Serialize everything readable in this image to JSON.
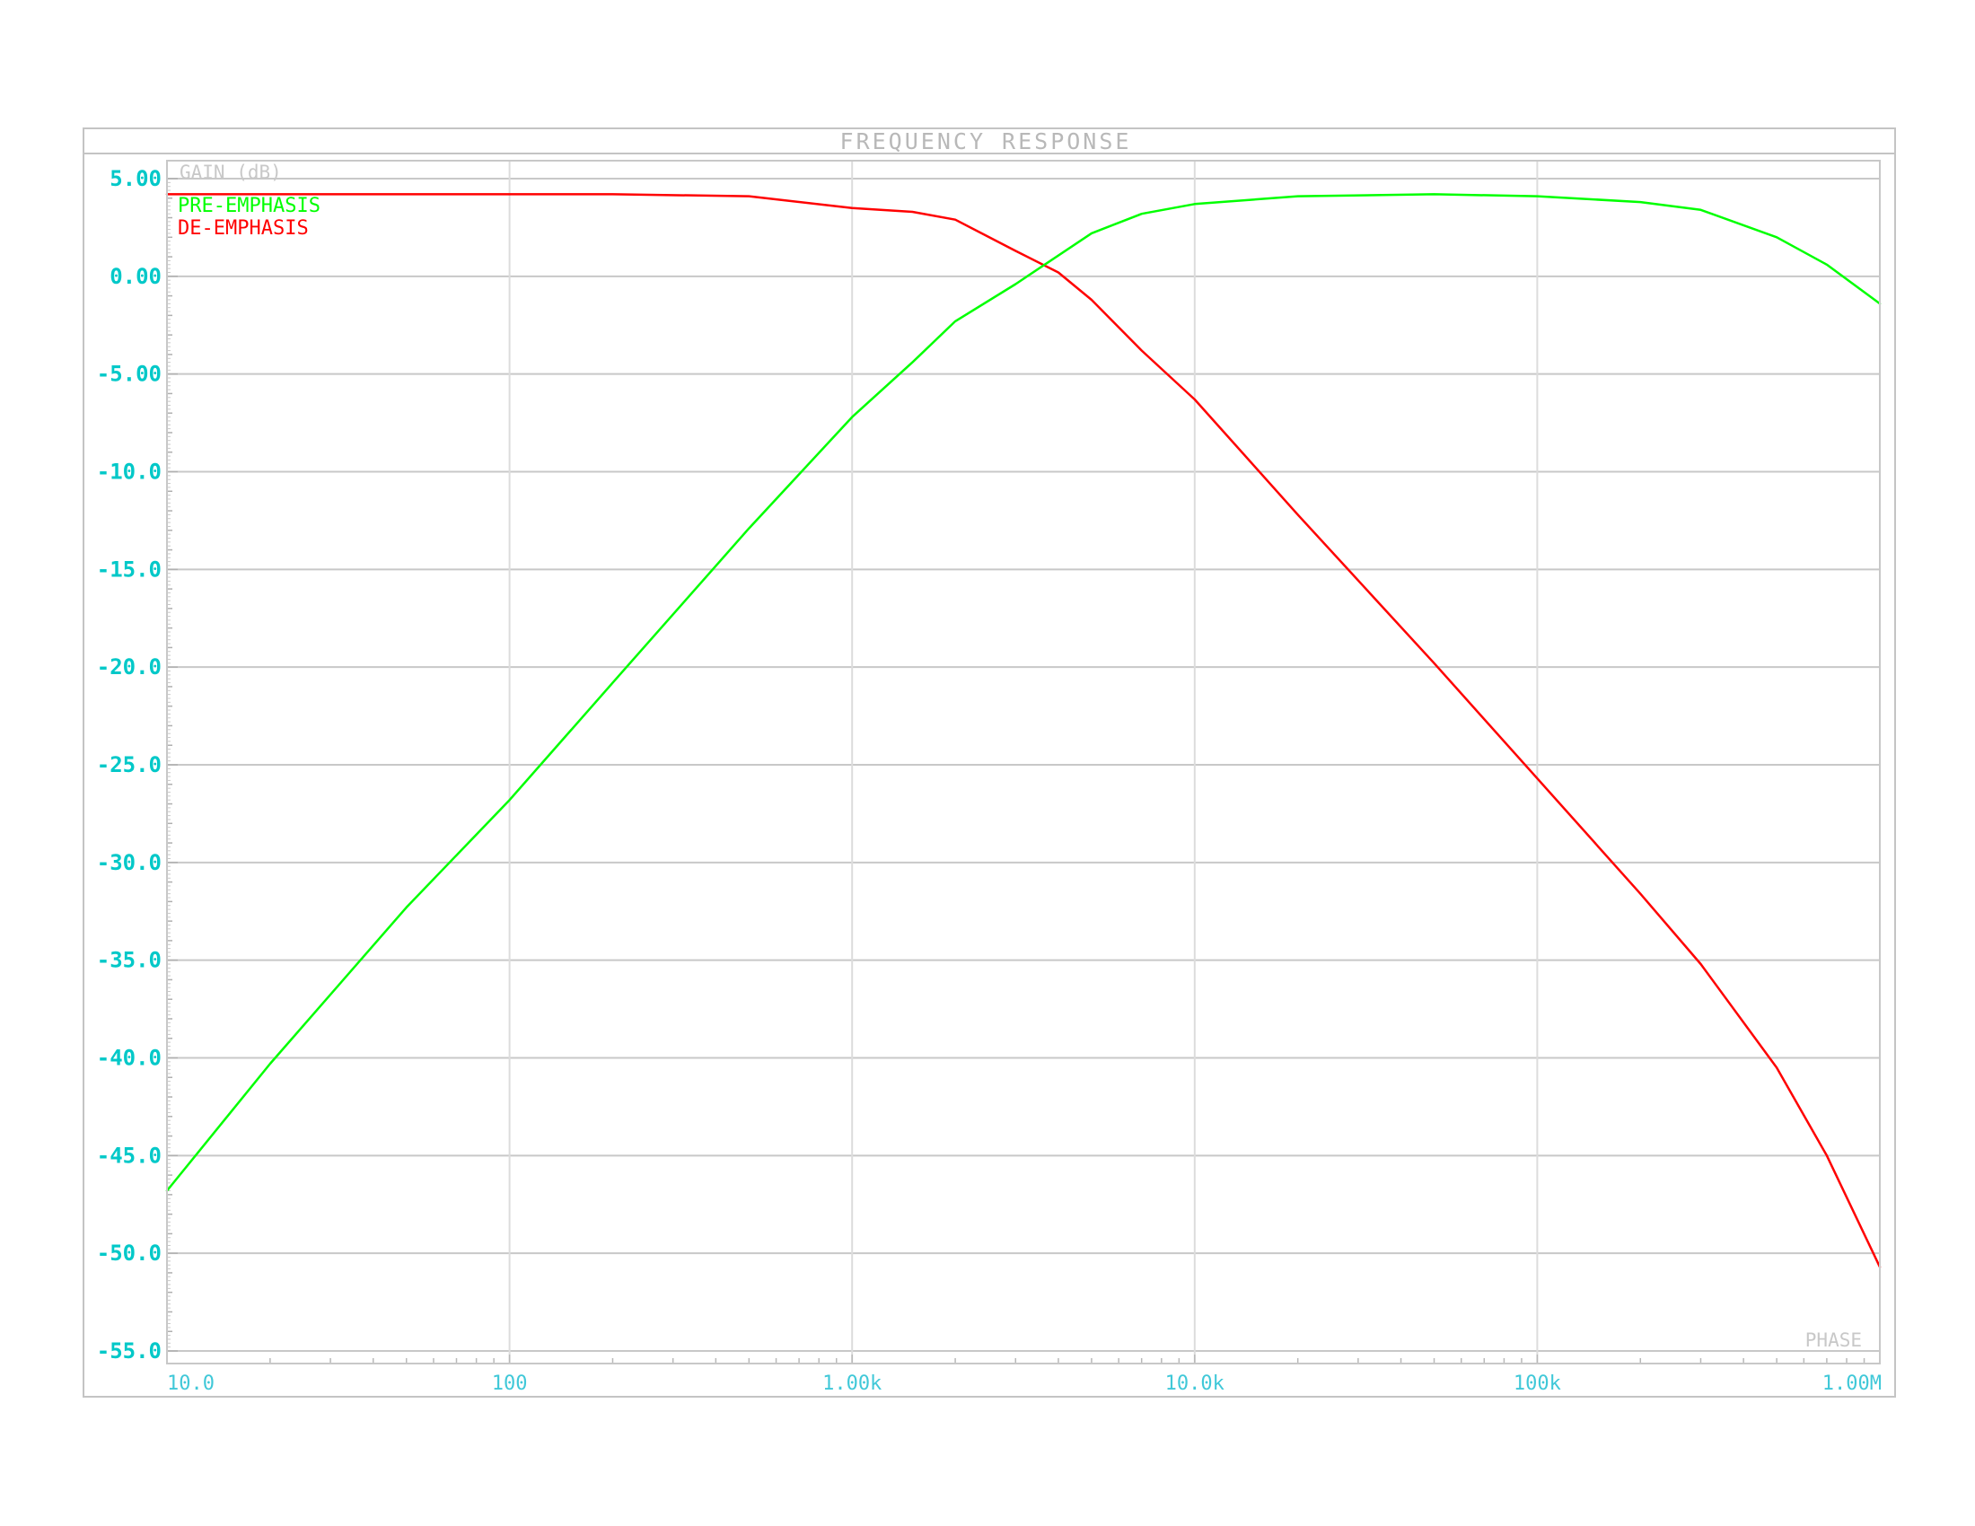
{
  "chart_data": {
    "type": "line",
    "title": "FREQUENCY RESPONSE",
    "ylabel": "GAIN (dB)",
    "corner_label": "PHASE",
    "x_scale": "log",
    "xlim": [
      10,
      1000000
    ],
    "ylim": [
      -55,
      5
    ],
    "grid": true,
    "legend_position": "top-left",
    "x_ticks": [
      {
        "value": 10,
        "label": "10.0"
      },
      {
        "value": 100,
        "label": "100"
      },
      {
        "value": 1000,
        "label": "1.00k"
      },
      {
        "value": 10000,
        "label": "10.0k"
      },
      {
        "value": 100000,
        "label": "100k"
      },
      {
        "value": 1000000,
        "label": "1.00M"
      }
    ],
    "y_ticks": [
      {
        "value": 5,
        "label": "5.00"
      },
      {
        "value": 0,
        "label": "0.00"
      },
      {
        "value": -5,
        "label": "-5.00"
      },
      {
        "value": -10,
        "label": "-10.0"
      },
      {
        "value": -15,
        "label": "-15.0"
      },
      {
        "value": -20,
        "label": "-20.0"
      },
      {
        "value": -25,
        "label": "-25.0"
      },
      {
        "value": -30,
        "label": "-30.0"
      },
      {
        "value": -35,
        "label": "-35.0"
      },
      {
        "value": -40,
        "label": "-40.0"
      },
      {
        "value": -45,
        "label": "-45.0"
      },
      {
        "value": -50,
        "label": "-50.0"
      },
      {
        "value": -55,
        "label": "-55.0"
      }
    ],
    "series": [
      {
        "name": "PRE-EMPHASIS",
        "color": "#00ff00",
        "points": [
          [
            10,
            -46.8
          ],
          [
            20,
            -40.3
          ],
          [
            50,
            -32.3
          ],
          [
            100,
            -26.8
          ],
          [
            200,
            -20.8
          ],
          [
            500,
            -12.9
          ],
          [
            1000,
            -7.2
          ],
          [
            1500,
            -4.4
          ],
          [
            2000,
            -2.3
          ],
          [
            3000,
            -0.4
          ],
          [
            5000,
            2.2
          ],
          [
            7000,
            3.2
          ],
          [
            10000,
            3.7
          ],
          [
            20000,
            4.1
          ],
          [
            50000,
            4.2
          ],
          [
            100000,
            4.1
          ],
          [
            200000,
            3.8
          ],
          [
            300000,
            3.4
          ],
          [
            500000,
            2.0
          ],
          [
            700000,
            0.6
          ],
          [
            1000000,
            -1.4
          ]
        ]
      },
      {
        "name": "DE-EMPHASIS",
        "color": "#ff0000",
        "points": [
          [
            10,
            4.2
          ],
          [
            100,
            4.2
          ],
          [
            200,
            4.2
          ],
          [
            500,
            4.1
          ],
          [
            1000,
            3.5
          ],
          [
            1500,
            3.3
          ],
          [
            2000,
            2.9
          ],
          [
            3000,
            1.3
          ],
          [
            4000,
            0.2
          ],
          [
            5000,
            -1.2
          ],
          [
            7000,
            -3.8
          ],
          [
            10000,
            -6.3
          ],
          [
            20000,
            -12.2
          ],
          [
            50000,
            -19.8
          ],
          [
            100000,
            -25.7
          ],
          [
            200000,
            -31.6
          ],
          [
            300000,
            -35.2
          ],
          [
            500000,
            -40.5
          ],
          [
            700000,
            -45.0
          ],
          [
            1000000,
            -50.7
          ]
        ]
      }
    ]
  }
}
